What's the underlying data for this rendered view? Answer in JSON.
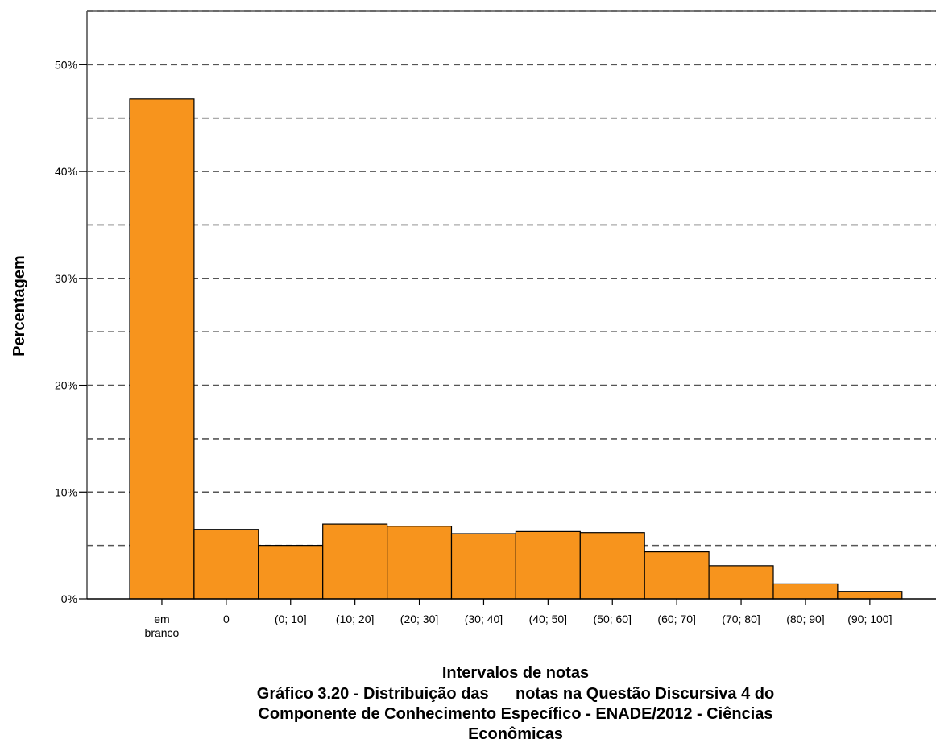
{
  "chart_data": {
    "type": "bar",
    "xlabel": "Intervalos de notas",
    "ylabel": "Percentagem",
    "caption": [
      "Gráfico 3.20 - Distribuição das      notas na Questão Discursiva 4 do",
      "Componente de Conhecimento Específico - ENADE/2012 - Ciências",
      "Econômicas"
    ],
    "categories": [
      [
        "em",
        "branco"
      ],
      [
        "0"
      ],
      [
        "(0; 10]"
      ],
      [
        "(10; 20]"
      ],
      [
        "(20; 30]"
      ],
      [
        "(30; 40]"
      ],
      [
        "(40; 50]"
      ],
      [
        "(50; 60]"
      ],
      [
        "(60; 70]"
      ],
      [
        "(70; 80]"
      ],
      [
        "(80; 90]"
      ],
      [
        "(90; 100]"
      ]
    ],
    "values": [
      46.8,
      6.5,
      5.0,
      7.0,
      6.8,
      6.1,
      6.3,
      6.2,
      4.4,
      3.1,
      1.4,
      0.7
    ],
    "ylim": [
      0,
      55
    ],
    "yticks": [
      0,
      10,
      20,
      30,
      40,
      50
    ],
    "ytick_labels": [
      "0%",
      "10%",
      "20%",
      "30%",
      "40%",
      "50%"
    ],
    "gridlines": [
      5,
      10,
      15,
      20,
      25,
      30,
      35,
      40,
      45,
      50,
      55
    ],
    "grid": true,
    "bar_color": "#F7941D",
    "bar_edge_color": "#000000"
  }
}
